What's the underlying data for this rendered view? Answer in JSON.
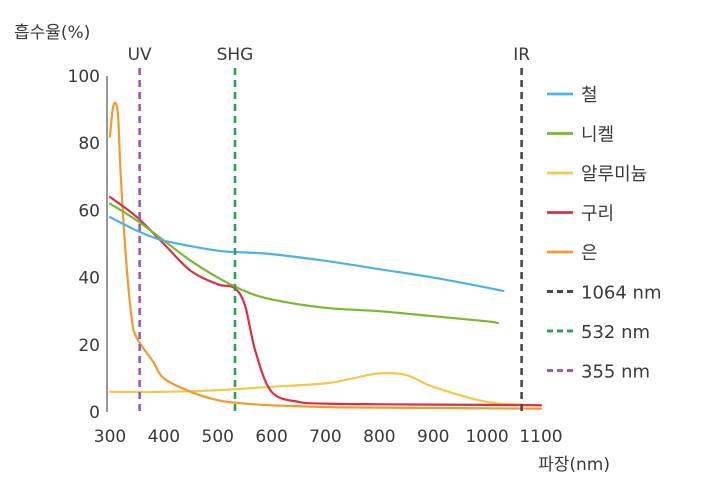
{
  "chart_data": {
    "type": "line",
    "ylabel": "흡수율(%)",
    "xlabel": "파장(nm)",
    "xlim": [
      300,
      1100
    ],
    "ylim": [
      0,
      100
    ],
    "x_ticks": [
      300,
      400,
      500,
      600,
      700,
      800,
      900,
      1000,
      1100
    ],
    "y_ticks": [
      0,
      20,
      40,
      60,
      80,
      100
    ],
    "grid": false,
    "legend_position": "right",
    "series": [
      {
        "name": "철",
        "color": "#4db3e6",
        "x": [
          300,
          350,
          400,
          500,
          550,
          600,
          700,
          800,
          900,
          1000,
          1030
        ],
        "y": [
          58,
          54,
          51,
          48,
          47.5,
          47,
          45,
          42.5,
          40,
          37,
          36
        ]
      },
      {
        "name": "니켈",
        "color": "#7ab82e",
        "x": [
          300,
          350,
          400,
          450,
          500,
          550,
          600,
          700,
          800,
          900,
          1000,
          1020
        ],
        "y": [
          62,
          57,
          51,
          45,
          40,
          36,
          33.5,
          31,
          30,
          28.5,
          27,
          26.5
        ]
      },
      {
        "name": "알루미늄",
        "color": "#f5c84a",
        "x": [
          300,
          400,
          500,
          600,
          700,
          750,
          800,
          850,
          900,
          1000,
          1100
        ],
        "y": [
          6,
          6,
          6.5,
          7.5,
          8.5,
          10,
          11.5,
          11,
          7.5,
          3,
          2
        ]
      },
      {
        "name": "구리",
        "color": "#d93048",
        "x": [
          300,
          350,
          400,
          450,
          500,
          530,
          550,
          570,
          600,
          650,
          700,
          800,
          900,
          1000,
          1100
        ],
        "y": [
          64,
          58,
          50,
          42,
          38,
          37,
          32,
          18,
          6,
          3,
          2.5,
          2.3,
          2.2,
          2.1,
          2
        ]
      },
      {
        "name": "은",
        "color": "#f39a2e",
        "x": [
          300,
          305,
          310,
          315,
          320,
          330,
          340,
          350,
          380,
          400,
          450,
          500,
          550,
          600,
          700,
          800,
          900,
          1000,
          1100
        ],
        "y": [
          82,
          90,
          92,
          88,
          70,
          45,
          28,
          22,
          15,
          10,
          6,
          3.5,
          2.5,
          2,
          1.5,
          1.3,
          1.2,
          1.1,
          1
        ]
      }
    ],
    "reference_lines": [
      {
        "x": 1064,
        "label": "IR",
        "legend": "1064 nm",
        "color": "#4a4a4a"
      },
      {
        "x": 532,
        "label": "SHG",
        "legend": "532 nm",
        "color": "#2e9e58"
      },
      {
        "x": 355,
        "label": "UV",
        "legend": "355 nm",
        "color": "#9b5bb5"
      }
    ]
  }
}
